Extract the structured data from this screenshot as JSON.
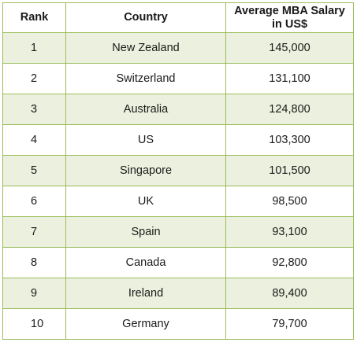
{
  "chart_data": {
    "type": "table",
    "columns": [
      "Rank",
      "Country",
      "Average MBA Salary\nin US$"
    ],
    "rows": [
      {
        "rank": "1",
        "country": "New Zealand",
        "salary": "145,000"
      },
      {
        "rank": "2",
        "country": "Switzerland",
        "salary": "131,100"
      },
      {
        "rank": "3",
        "country": "Australia",
        "salary": "124,800"
      },
      {
        "rank": "4",
        "country": "US",
        "salary": "103,300"
      },
      {
        "rank": "5",
        "country": "Singapore",
        "salary": "101,500"
      },
      {
        "rank": "6",
        "country": "UK",
        "salary": "98,500"
      },
      {
        "rank": "7",
        "country": "Spain",
        "salary": "93,100"
      },
      {
        "rank": "8",
        "country": "Canada",
        "salary": "92,800"
      },
      {
        "rank": "9",
        "country": "Ireland",
        "salary": "89,400"
      },
      {
        "rank": "10",
        "country": "Germany",
        "salary": "79,700"
      }
    ]
  },
  "colors": {
    "border": "#9bbb59",
    "stripe": "#ebf1de",
    "background": "#ffffff",
    "text": "#1a1a1a"
  }
}
